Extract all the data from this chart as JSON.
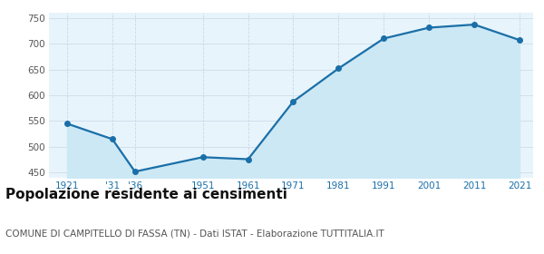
{
  "years": [
    1921,
    1931,
    1936,
    1951,
    1961,
    1971,
    1981,
    1991,
    2001,
    2011,
    2021
  ],
  "values": [
    545,
    515,
    452,
    480,
    476,
    588,
    652,
    710,
    731,
    737,
    707
  ],
  "x_tick_labels": [
    "1921",
    "'31",
    "'36",
    "1951",
    "1961",
    "1971",
    "1981",
    "1991",
    "2001",
    "2011",
    "2021"
  ],
  "ylim": [
    440,
    760
  ],
  "yticks": [
    450,
    500,
    550,
    600,
    650,
    700,
    750
  ],
  "line_color": "#1a6fa8",
  "fill_color": "#cce8f4",
  "marker_color": "#1a6fa8",
  "background_color": "#ffffff",
  "plot_bg_color": "#e8f4fb",
  "grid_color": "#c8d8e8",
  "title_main": "Popolazione residente ai censimenti",
  "title_sub": "COMUNE DI CAMPITELLO DI FASSA (TN) - Dati ISTAT - Elaborazione TUTTITALIA.IT",
  "title_main_fontsize": 11,
  "title_sub_fontsize": 7.5,
  "marker_size": 4
}
